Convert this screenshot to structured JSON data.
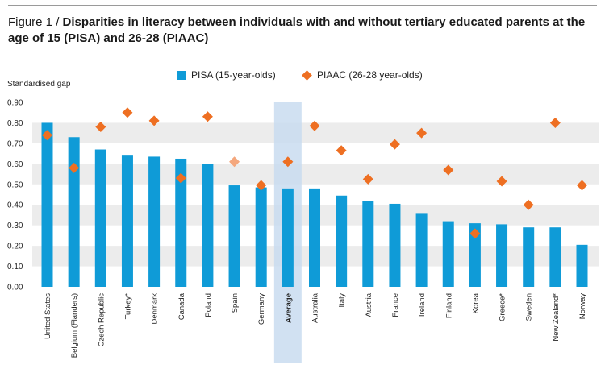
{
  "figure": {
    "label": "Figure 1 / ",
    "title": "Disparities in literacy between individuals with and without tertiary educated parents at the age of 15 (PISA) and 26-28 (PIAAC)"
  },
  "legend": {
    "pisa": "PISA (15-year-olds)",
    "piaac": "PIAAC (26-28 year-olds)"
  },
  "colors": {
    "pisa": "#0f9bd7",
    "piaac": "#ee6f22",
    "piaac_faded": "#f4a77d",
    "band": "#ececec",
    "highlight": "#c9dcf0"
  },
  "chart_data": {
    "type": "bar",
    "title": "Disparities in literacy between individuals with and without tertiary educated parents at the age of 15 (PISA) and 26-28 (PIAAC)",
    "ylabel": "Standardised gap",
    "xlabel": "",
    "ylim": [
      0,
      0.9
    ],
    "yticks": [
      "0.00",
      "0.10",
      "0.20",
      "0.30",
      "0.40",
      "0.50",
      "0.60",
      "0.70",
      "0.80",
      "0.90"
    ],
    "highlight_category": "Average",
    "faded_marker_category": "Spain",
    "categories": [
      "United States",
      "Belgium (Flanders)",
      "Czech Republic",
      "Turkey*",
      "Denmark",
      "Canada",
      "Poland",
      "Spain",
      "Germany",
      "Average",
      "Australia",
      "Italy",
      "Austria",
      "France",
      "Ireland",
      "Finland",
      "Korea",
      "Greece*",
      "Sweden",
      "New Zealand*",
      "Norway"
    ],
    "series": [
      {
        "name": "PISA (15-year-olds)",
        "kind": "bar",
        "values": [
          0.8,
          0.73,
          0.67,
          0.64,
          0.635,
          0.625,
          0.6,
          0.495,
          0.485,
          0.48,
          0.48,
          0.445,
          0.42,
          0.405,
          0.36,
          0.32,
          0.31,
          0.305,
          0.29,
          0.29,
          0.205
        ]
      },
      {
        "name": "PIAAC (26-28 year-olds)",
        "kind": "marker",
        "values": [
          0.74,
          0.58,
          0.78,
          0.85,
          0.81,
          0.53,
          0.83,
          0.61,
          0.495,
          0.61,
          0.785,
          0.665,
          0.525,
          0.695,
          0.75,
          0.57,
          0.26,
          0.515,
          0.4,
          0.8,
          0.495
        ]
      }
    ]
  }
}
